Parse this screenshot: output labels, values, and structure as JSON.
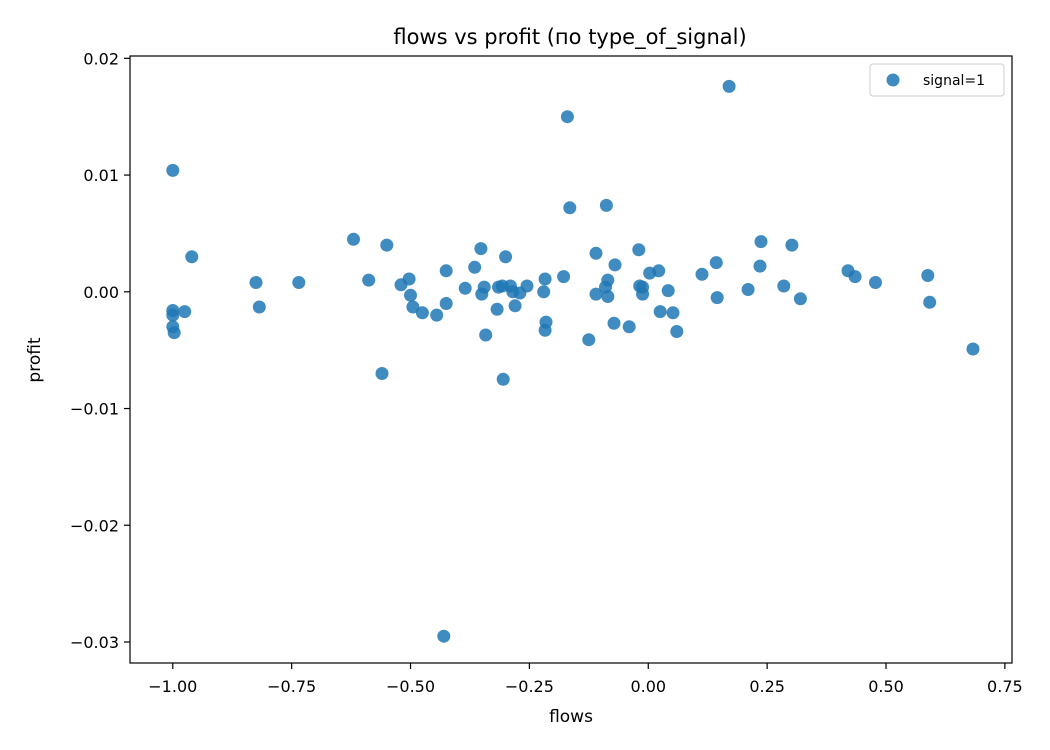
{
  "chart_data": {
    "type": "scatter",
    "title": "flows vs profit (по type_of_signal)",
    "xlabel": "flows",
    "ylabel": "profit",
    "xlim": [
      -1.09,
      0.765
    ],
    "ylim": [
      -0.0318,
      0.0202
    ],
    "xticks": [
      -1.0,
      -0.75,
      -0.5,
      -0.25,
      0.0,
      0.25,
      0.5,
      0.75
    ],
    "xtick_labels": [
      "−1.00",
      "−0.75",
      "−0.50",
      "−0.25",
      "0.00",
      "0.25",
      "0.50",
      "0.75"
    ],
    "yticks": [
      -0.03,
      -0.02,
      -0.01,
      0.0,
      0.01,
      0.02
    ],
    "ytick_labels": [
      "−0.03",
      "−0.02",
      "−0.01",
      "0.00",
      "0.01",
      "0.02"
    ],
    "grid": false,
    "legend_position": "top-right",
    "series": [
      {
        "name": "signal=1",
        "color": "#1f77b4",
        "points": [
          [
            -1.0,
            0.0104
          ],
          [
            -1.0,
            -0.0016
          ],
          [
            -1.0,
            -0.002
          ],
          [
            -1.0,
            -0.003
          ],
          [
            -0.997,
            -0.0035
          ],
          [
            -0.975,
            -0.0017
          ],
          [
            -0.96,
            0.003
          ],
          [
            -0.825,
            0.0008
          ],
          [
            -0.818,
            -0.0013
          ],
          [
            -0.735,
            0.0008
          ],
          [
            -0.62,
            0.0045
          ],
          [
            -0.588,
            0.001
          ],
          [
            -0.56,
            -0.007
          ],
          [
            -0.55,
            0.004
          ],
          [
            -0.52,
            0.0006
          ],
          [
            -0.503,
            0.0011
          ],
          [
            -0.5,
            -0.0003
          ],
          [
            -0.495,
            -0.0013
          ],
          [
            -0.475,
            -0.0018
          ],
          [
            -0.445,
            -0.002
          ],
          [
            -0.43,
            -0.0295
          ],
          [
            -0.425,
            -0.001
          ],
          [
            -0.425,
            0.0018
          ],
          [
            -0.385,
            0.0003
          ],
          [
            -0.365,
            0.0021
          ],
          [
            -0.352,
            0.0037
          ],
          [
            -0.35,
            -0.0002
          ],
          [
            -0.345,
            0.0004
          ],
          [
            -0.342,
            -0.0037
          ],
          [
            -0.318,
            -0.0015
          ],
          [
            -0.315,
            0.0004
          ],
          [
            -0.307,
            0.0005
          ],
          [
            -0.305,
            -0.0075
          ],
          [
            -0.3,
            0.003
          ],
          [
            -0.29,
            0.0005
          ],
          [
            -0.285,
            0.0
          ],
          [
            -0.28,
            -0.0012
          ],
          [
            -0.27,
            -0.0001
          ],
          [
            -0.255,
            0.0005
          ],
          [
            -0.22,
            0.0
          ],
          [
            -0.217,
            0.0011
          ],
          [
            -0.217,
            -0.0033
          ],
          [
            -0.215,
            -0.0026
          ],
          [
            -0.178,
            0.0013
          ],
          [
            -0.17,
            0.015
          ],
          [
            -0.165,
            0.0072
          ],
          [
            -0.125,
            -0.0041
          ],
          [
            -0.11,
            0.0033
          ],
          [
            -0.11,
            -0.0002
          ],
          [
            -0.09,
            0.0004
          ],
          [
            -0.088,
            0.0074
          ],
          [
            -0.085,
            0.001
          ],
          [
            -0.085,
            -0.0004
          ],
          [
            -0.072,
            -0.0027
          ],
          [
            -0.07,
            0.0023
          ],
          [
            -0.04,
            -0.003
          ],
          [
            -0.02,
            0.0036
          ],
          [
            -0.018,
            0.0005
          ],
          [
            -0.012,
            -0.0002
          ],
          [
            -0.012,
            0.0004
          ],
          [
            0.003,
            0.0016
          ],
          [
            0.022,
            0.0018
          ],
          [
            0.025,
            -0.0017
          ],
          [
            0.042,
            0.0001
          ],
          [
            0.052,
            -0.0018
          ],
          [
            0.06,
            -0.0034
          ],
          [
            0.113,
            0.0015
          ],
          [
            0.143,
            0.0025
          ],
          [
            0.145,
            -0.0005
          ],
          [
            0.17,
            0.0176
          ],
          [
            0.21,
            0.0002
          ],
          [
            0.235,
            0.0022
          ],
          [
            0.237,
            0.0043
          ],
          [
            0.285,
            0.0005
          ],
          [
            0.302,
            0.004
          ],
          [
            0.32,
            -0.0006
          ],
          [
            0.42,
            0.0018
          ],
          [
            0.435,
            0.0013
          ],
          [
            0.478,
            0.0008
          ],
          [
            0.588,
            0.0014
          ],
          [
            0.592,
            -0.0009
          ],
          [
            0.683,
            -0.0049
          ]
        ]
      }
    ]
  }
}
